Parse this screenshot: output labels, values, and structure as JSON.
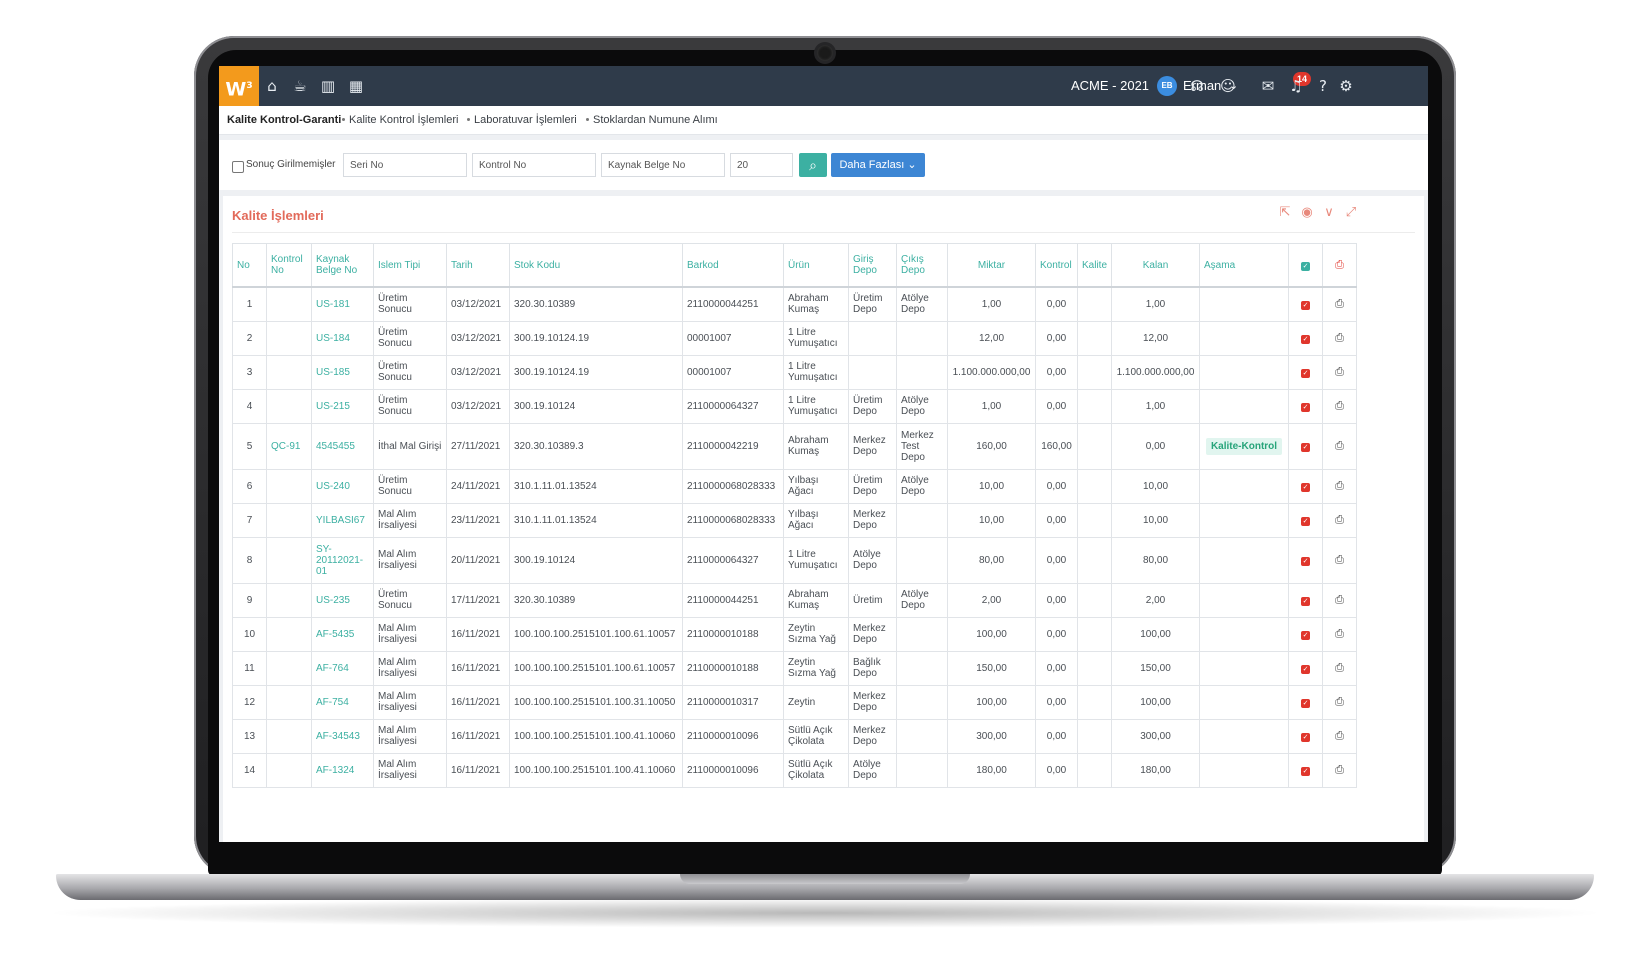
{
  "topbar": {
    "logo_text": "W",
    "logo_sup": "3",
    "icons": [
      "home-icon",
      "coffee-icon",
      "bar-chart-icon",
      "calendar-icon"
    ],
    "company": "ACME - 2021",
    "avatar_initials": "EB",
    "username": "Erman",
    "notification_count": "14",
    "right_icons": [
      "headset-icon",
      "smiley-icon",
      "chat-icon",
      "bell-icon",
      "help-icon",
      "settings-icon"
    ]
  },
  "breadcrumb": {
    "items": [
      "Kalite Kontrol-Garanti",
      "Kalite Kontrol İşlemleri",
      "Laboratuvar İşlemleri",
      "Stoklardan Numune Alımı"
    ]
  },
  "filters": {
    "checkbox_label": "Sonuç Girilmemişler",
    "serial_placeholder": "Seri No",
    "control_placeholder": "Kontrol No",
    "source_doc_placeholder": "Kaynak Belge No",
    "page_size": "20",
    "more_label": "Daha Fazlası"
  },
  "panel": {
    "title": "Kalite İşlemleri",
    "tool_icons": [
      "export-icon",
      "eye-icon",
      "chevron-down-icon",
      "expand-icon"
    ]
  },
  "table": {
    "headers": {
      "no": "No",
      "kontrol_no": "Kontrol No",
      "kaynak_belge_no": "Kaynak Belge No",
      "islem_tipi": "Islem Tipi",
      "tarih": "Tarih",
      "stok_kodu": "Stok Kodu",
      "barkod": "Barkod",
      "urun": "Ürün",
      "giris_depo": "Giriş Depo",
      "cikis_depo": "Çıkış Depo",
      "miktar": "Miktar",
      "kontrol": "Kontrol",
      "kalite": "Kalite",
      "kalan": "Kalan",
      "asama": "Aşama"
    },
    "rows": [
      {
        "no": "1",
        "kontrol_no": "",
        "kaynak": "US-181",
        "islem": "Üretim Sonucu",
        "tarih": "03/12/2021",
        "stok": "320.30.10389",
        "barkod": "2110000044251",
        "urun": "Abraham Kumaş",
        "giris": "Üretim Depo",
        "cikis": "Atölye Depo",
        "miktar": "1,00",
        "kontrol": "0,00",
        "kalite": "",
        "kalan": "1,00",
        "asama": ""
      },
      {
        "no": "2",
        "kontrol_no": "",
        "kaynak": "US-184",
        "islem": "Üretim Sonucu",
        "tarih": "03/12/2021",
        "stok": "300.19.10124.19",
        "barkod": "00001007",
        "urun": "1 Litre Yumuşatıcı",
        "giris": "",
        "cikis": "",
        "miktar": "12,00",
        "kontrol": "0,00",
        "kalite": "",
        "kalan": "12,00",
        "asama": ""
      },
      {
        "no": "3",
        "kontrol_no": "",
        "kaynak": "US-185",
        "islem": "Üretim Sonucu",
        "tarih": "03/12/2021",
        "stok": "300.19.10124.19",
        "barkod": "00001007",
        "urun": "1 Litre Yumuşatıcı",
        "giris": "",
        "cikis": "",
        "miktar": "1.100.000.000,00",
        "kontrol": "0,00",
        "kalite": "",
        "kalan": "1.100.000.000,00",
        "asama": ""
      },
      {
        "no": "4",
        "kontrol_no": "",
        "kaynak": "US-215",
        "islem": "Üretim Sonucu",
        "tarih": "03/12/2021",
        "stok": "300.19.10124",
        "barkod": "2110000064327",
        "urun": "1 Litre Yumuşatıcı",
        "giris": "Üretim Depo",
        "cikis": "Atölye Depo",
        "miktar": "1,00",
        "kontrol": "0,00",
        "kalite": "",
        "kalan": "1,00",
        "asama": ""
      },
      {
        "no": "5",
        "kontrol_no": "QC-91",
        "kaynak": "4545455",
        "islem": "İthal Mal Girişi",
        "tarih": "27/11/2021",
        "stok": "320.30.10389.3",
        "barkod": "2110000042219",
        "urun": "Abraham Kumaş",
        "giris": "Merkez Depo",
        "cikis": "Merkez Test Depo",
        "miktar": "160,00",
        "kontrol": "160,00",
        "kalite": "",
        "kalan": "0,00",
        "asama": "Kalite-Kontrol"
      },
      {
        "no": "6",
        "kontrol_no": "",
        "kaynak": "US-240",
        "islem": "Üretim Sonucu",
        "tarih": "24/11/2021",
        "stok": "310.1.11.01.13524",
        "barkod": "2110000068028333",
        "urun": "Yılbaşı Ağacı",
        "giris": "Üretim Depo",
        "cikis": "Atölye Depo",
        "miktar": "10,00",
        "kontrol": "0,00",
        "kalite": "",
        "kalan": "10,00",
        "asama": ""
      },
      {
        "no": "7",
        "kontrol_no": "",
        "kaynak": "YILBASI67",
        "islem": "Mal Alım İrsaliyesi",
        "tarih": "23/11/2021",
        "stok": "310.1.11.01.13524",
        "barkod": "2110000068028333",
        "urun": "Yılbaşı Ağacı",
        "giris": "Merkez Depo",
        "cikis": "",
        "miktar": "10,00",
        "kontrol": "0,00",
        "kalite": "",
        "kalan": "10,00",
        "asama": ""
      },
      {
        "no": "8",
        "kontrol_no": "",
        "kaynak": "SY-20112021-01",
        "islem": "Mal Alım İrsaliyesi",
        "tarih": "20/11/2021",
        "stok": "300.19.10124",
        "barkod": "2110000064327",
        "urun": "1 Litre Yumuşatıcı",
        "giris": "Atölye Depo",
        "cikis": "",
        "miktar": "80,00",
        "kontrol": "0,00",
        "kalite": "",
        "kalan": "80,00",
        "asama": ""
      },
      {
        "no": "9",
        "kontrol_no": "",
        "kaynak": "US-235",
        "islem": "Üretim Sonucu",
        "tarih": "17/11/2021",
        "stok": "320.30.10389",
        "barkod": "2110000044251",
        "urun": "Abraham Kumaş",
        "giris": "Üretim",
        "cikis": "Atölye Depo",
        "miktar": "2,00",
        "kontrol": "0,00",
        "kalite": "",
        "kalan": "2,00",
        "asama": ""
      },
      {
        "no": "10",
        "kontrol_no": "",
        "kaynak": "AF-5435",
        "islem": "Mal Alım İrsaliyesi",
        "tarih": "16/11/2021",
        "stok": "100.100.100.2515101.100.61.10057",
        "barkod": "2110000010188",
        "urun": "Zeytin Sızma Yağ",
        "giris": "Merkez Depo",
        "cikis": "",
        "miktar": "100,00",
        "kontrol": "0,00",
        "kalite": "",
        "kalan": "100,00",
        "asama": ""
      },
      {
        "no": "11",
        "kontrol_no": "",
        "kaynak": "AF-764",
        "islem": "Mal Alım İrsaliyesi",
        "tarih": "16/11/2021",
        "stok": "100.100.100.2515101.100.61.10057",
        "barkod": "2110000010188",
        "urun": "Zeytin Sızma Yağ",
        "giris": "Bağlık Depo",
        "cikis": "",
        "miktar": "150,00",
        "kontrol": "0,00",
        "kalite": "",
        "kalan": "150,00",
        "asama": ""
      },
      {
        "no": "12",
        "kontrol_no": "",
        "kaynak": "AF-754",
        "islem": "Mal Alım İrsaliyesi",
        "tarih": "16/11/2021",
        "stok": "100.100.100.2515101.100.31.10050",
        "barkod": "2110000010317",
        "urun": "Zeytin",
        "giris": "Merkez Depo",
        "cikis": "",
        "miktar": "100,00",
        "kontrol": "0,00",
        "kalite": "",
        "kalan": "100,00",
        "asama": ""
      },
      {
        "no": "13",
        "kontrol_no": "",
        "kaynak": "AF-34543",
        "islem": "Mal Alım İrsaliyesi",
        "tarih": "16/11/2021",
        "stok": "100.100.100.2515101.100.41.10060",
        "barkod": "2110000010096",
        "urun": "Sütlü Açık Çikolata",
        "giris": "Merkez Depo",
        "cikis": "",
        "miktar": "300,00",
        "kontrol": "0,00",
        "kalite": "",
        "kalan": "300,00",
        "asama": ""
      },
      {
        "no": "14",
        "kontrol_no": "",
        "kaynak": "AF-1324",
        "islem": "Mal Alım İrsaliyesi",
        "tarih": "16/11/2021",
        "stok": "100.100.100.2515101.100.41.10060",
        "barkod": "2110000010096",
        "urun": "Sütlü Açık Çikolata",
        "giris": "Atölye Depo",
        "cikis": "",
        "miktar": "180,00",
        "kontrol": "0,00",
        "kalite": "",
        "kalan": "180,00",
        "asama": ""
      }
    ]
  },
  "colors": {
    "topbar": "#2f3b4a",
    "logo": "#f39a1c",
    "accent_teal": "#3cb0a2",
    "primary_blue": "#3d86d4",
    "panel_title": "#e26a5a",
    "danger_red": "#e0362c"
  }
}
